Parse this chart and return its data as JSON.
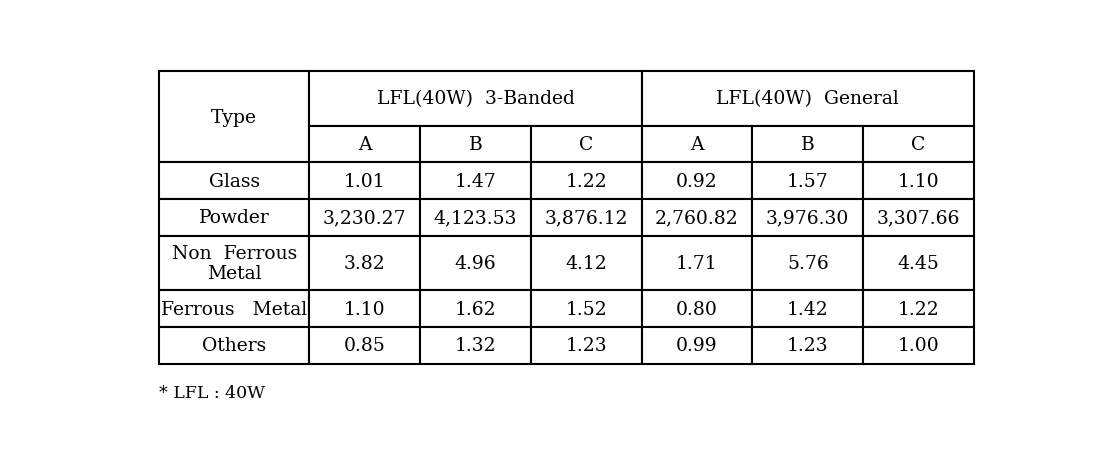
{
  "col_headers_level1_left": "Type",
  "col_headers_level1_mid": "LFL(40W)  3-Banded",
  "col_headers_level1_right": "LFL(40W)  General",
  "col_headers_level2": [
    "A",
    "B",
    "C",
    "A",
    "B",
    "C"
  ],
  "rows": [
    [
      "Glass",
      "1.01",
      "1.47",
      "1.22",
      "0.92",
      "1.57",
      "1.10"
    ],
    [
      "Powder",
      "3,230.27",
      "4,123.53",
      "3,876.12",
      "2,760.82",
      "3,976.30",
      "3,307.66"
    ],
    [
      "Non  Ferrous\nMetal",
      "3.82",
      "4.96",
      "4.12",
      "1.71",
      "5.76",
      "4.45"
    ],
    [
      "Ferrous   Metal",
      "1.10",
      "1.62",
      "1.52",
      "0.80",
      "1.42",
      "1.22"
    ],
    [
      "Others",
      "0.85",
      "1.32",
      "1.23",
      "0.99",
      "1.23",
      "1.00"
    ]
  ],
  "footer": "* LFL : 40W",
  "background_color": "#ffffff",
  "text_color": "#000000",
  "font_size": 13.5
}
